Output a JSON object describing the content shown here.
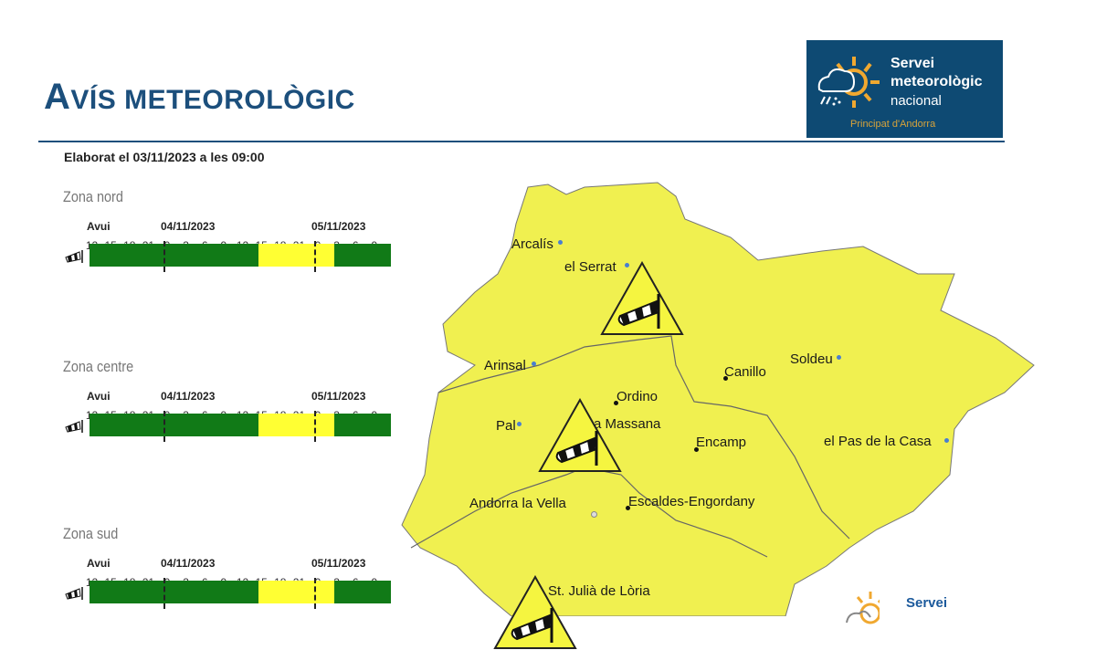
{
  "header": {
    "title_first": "A",
    "title_rest": "VÍS METEOROLÒGIC",
    "elaborat": "Elaborat el 03/11/2023 a les 09:00"
  },
  "logo": {
    "line1": "Servei",
    "line2": "meteorològic",
    "line3": "nacional",
    "line4": "Principat d'Andorra",
    "bg": "#0e4a73",
    "accent": "#f0a830"
  },
  "timeline": {
    "day_labels": [
      "Avui",
      "04/11/2023",
      "05/11/2023"
    ],
    "hour_labels": [
      "12",
      "15",
      "18",
      "21",
      "0",
      "3",
      "6",
      "9",
      "12",
      "15",
      "18",
      "21",
      "0",
      "3",
      "6",
      "9"
    ],
    "colors": {
      "green": "#117a17",
      "yellow": "#ffff33"
    },
    "icon": "windsock-icon"
  },
  "zones": [
    {
      "name": "Zona nord",
      "segments": [
        {
          "from": "03/11 12:00",
          "to": "04/11 15:00",
          "level": "green"
        },
        {
          "from": "04/11 15:00",
          "to": "05/11 03:00",
          "level": "yellow"
        },
        {
          "from": "05/11 03:00",
          "to": "05/11 12:00",
          "level": "green"
        }
      ]
    },
    {
      "name": "Zona centre",
      "segments": [
        {
          "from": "03/11 12:00",
          "to": "04/11 15:00",
          "level": "green"
        },
        {
          "from": "04/11 15:00",
          "to": "05/11 03:00",
          "level": "yellow"
        },
        {
          "from": "05/11 03:00",
          "to": "05/11 12:00",
          "level": "green"
        }
      ]
    },
    {
      "name": "Zona sud",
      "segments": [
        {
          "from": "03/11 12:00",
          "to": "04/11 15:00",
          "level": "green"
        },
        {
          "from": "04/11 15:00",
          "to": "05/11 03:00",
          "level": "yellow"
        },
        {
          "from": "05/11 03:00",
          "to": "05/11 12:00",
          "level": "green"
        }
      ]
    }
  ],
  "map": {
    "fill": "#f0f050",
    "towns": [
      "Arcalís",
      "el Serrat",
      "Arinsal",
      "Ordino",
      "Canillo",
      "Soldeu",
      "Pal",
      "a Massana",
      "Encamp",
      "el Pas de la Casa",
      "Andorra la Vella",
      "Escaldes-Engordany",
      "St. Julià de Lòria"
    ],
    "warning_icon": "windsock-warning-triangle-icon",
    "logo_text": "Servei"
  }
}
